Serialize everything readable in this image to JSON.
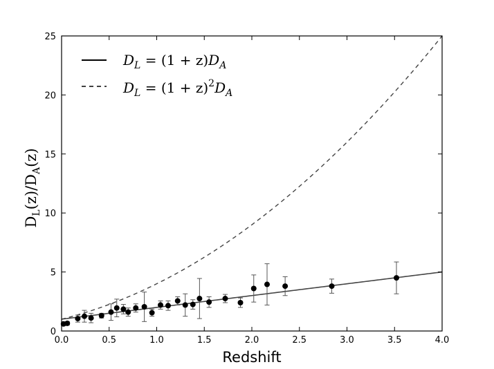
{
  "chart_data": {
    "type": "scatter",
    "title": "",
    "xlabel": "Redshift",
    "ylabel": "D_L(z)/D_A(z)",
    "ylabel_main": "D",
    "ylabel_sub_L": "L",
    "ylabel_sub_A": "A",
    "ylabel_mid": "(z)/D",
    "ylabel_end": "(z)",
    "xlim": [
      0,
      4
    ],
    "ylim": [
      0,
      25
    ],
    "x_ticks": [
      "0.0",
      "0.5",
      "1.0",
      "1.5",
      "2.0",
      "2.5",
      "3.0",
      "3.5",
      "4.0"
    ],
    "y_ticks": [
      "0",
      "5",
      "10",
      "15",
      "20",
      "25"
    ],
    "legend_position": "top-left",
    "series": [
      {
        "name": "D_L = (1+z) D_A",
        "style": "solid",
        "color": "#444444",
        "formula": "1+z"
      },
      {
        "name": "D_L = (1+z)^2 D_A",
        "style": "dashed",
        "color": "#444444",
        "formula": "(1+z)^2"
      },
      {
        "name": "data",
        "style": "markers",
        "color": "#000000",
        "points": [
          {
            "x": 0.02,
            "y": 0.6,
            "err": 0.15
          },
          {
            "x": 0.06,
            "y": 0.65,
            "err": 0.15
          },
          {
            "x": 0.17,
            "y": 1.05,
            "err": 0.3
          },
          {
            "x": 0.24,
            "y": 1.25,
            "err": 0.5
          },
          {
            "x": 0.31,
            "y": 1.1,
            "err": 0.4
          },
          {
            "x": 0.42,
            "y": 1.3,
            "err": 0.2
          },
          {
            "x": 0.52,
            "y": 1.6,
            "err": 0.7
          },
          {
            "x": 0.58,
            "y": 1.95,
            "err": 0.75
          },
          {
            "x": 0.65,
            "y": 1.85,
            "err": 0.4
          },
          {
            "x": 0.7,
            "y": 1.6,
            "err": 0.35
          },
          {
            "x": 0.78,
            "y": 1.95,
            "err": 0.35
          },
          {
            "x": 0.87,
            "y": 2.05,
            "err": 1.25
          },
          {
            "x": 0.95,
            "y": 1.55,
            "err": 0.3
          },
          {
            "x": 1.04,
            "y": 2.2,
            "err": 0.35
          },
          {
            "x": 1.12,
            "y": 2.15,
            "err": 0.4
          },
          {
            "x": 1.22,
            "y": 2.55,
            "err": 0.35
          },
          {
            "x": 1.3,
            "y": 2.2,
            "err": 0.95
          },
          {
            "x": 1.38,
            "y": 2.25,
            "err": 0.4
          },
          {
            "x": 1.45,
            "y": 2.75,
            "err": 1.7
          },
          {
            "x": 1.55,
            "y": 2.45,
            "err": 0.45
          },
          {
            "x": 1.72,
            "y": 2.75,
            "err": 0.35
          },
          {
            "x": 1.88,
            "y": 2.4,
            "err": 0.4
          },
          {
            "x": 2.02,
            "y": 3.6,
            "err": 1.15
          },
          {
            "x": 2.16,
            "y": 3.95,
            "err": 1.75
          },
          {
            "x": 2.35,
            "y": 3.8,
            "err": 0.8
          },
          {
            "x": 2.84,
            "y": 3.8,
            "err": 0.6
          },
          {
            "x": 3.52,
            "y": 4.5,
            "err": 1.35
          }
        ]
      }
    ],
    "legend": [
      {
        "style": "solid",
        "prefix": "D",
        "sub": "L",
        "mid": " = (1 + z)",
        "sup": "",
        "tail": "D",
        "tail_sub": "A"
      },
      {
        "style": "dashed",
        "prefix": "D",
        "sub": "L",
        "mid": " = (1 + z)",
        "sup": "2",
        "tail": "D",
        "tail_sub": "A"
      }
    ]
  }
}
